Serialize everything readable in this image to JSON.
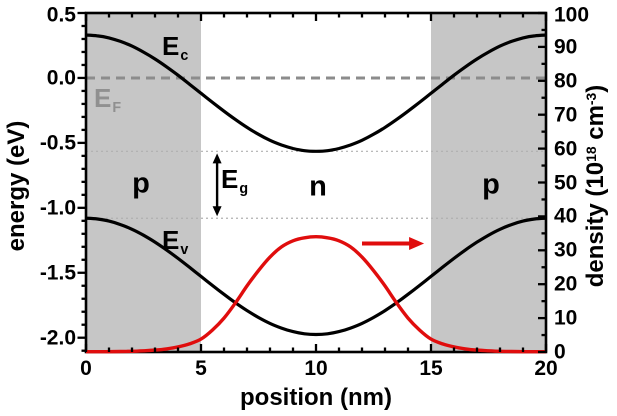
{
  "colors": {
    "background": "#ffffff",
    "band_curve": "#000000",
    "density_curve": "#e00d0d",
    "shaded_region": "#c6c6c6",
    "fermi_line": "#8c8c8c",
    "guide_line": "#b0b0b0",
    "frame": "#000000",
    "ef_label": "#909090"
  },
  "labels": {
    "x_axis": "position (nm)",
    "y_left_axis": "energy (eV)",
    "y_right": {
      "p1": "density (10",
      "sup1": "18",
      "p2": " cm",
      "sup2": "-3",
      "p3": ")"
    },
    "ec": {
      "main": "E",
      "sub": "c"
    },
    "ev": {
      "main": "E",
      "sub": "v"
    },
    "ef": {
      "main": "E",
      "sub": "F"
    },
    "eg": {
      "main": "E",
      "sub": "g"
    },
    "region_p_left": "p",
    "region_n": "n",
    "region_p_right": "p"
  },
  "chart_data": {
    "type": "line",
    "title": "",
    "x": {
      "label": "position (nm)",
      "min": 0,
      "max": 20,
      "major_ticks": [
        0,
        5,
        10,
        15,
        20
      ],
      "major_tick_labels": [
        "0",
        "5",
        "10",
        "15",
        "20"
      ],
      "minor_step": 1
    },
    "y_left": {
      "label": "energy (eV)",
      "min": -2.11,
      "max": 0.5,
      "major_ticks": [
        0.5,
        0.0,
        -0.5,
        -1.0,
        -1.5,
        -2.0
      ],
      "major_tick_labels": [
        "0.5",
        "0.0",
        "-0.5",
        "-1.0",
        "-1.5",
        "-2.0"
      ],
      "minor_step": 0.1
    },
    "y_right": {
      "label": "density (10^18 cm^-3)",
      "min": 0,
      "max": 100,
      "major_ticks": [
        0,
        10,
        20,
        30,
        40,
        50,
        60,
        70,
        80,
        90,
        100
      ],
      "major_tick_labels": [
        "0",
        "10",
        "20",
        "30",
        "40",
        "50",
        "60",
        "70",
        "80",
        "90",
        "100"
      ],
      "minor_step": 5
    },
    "grid": false,
    "legend": "none",
    "series": [
      {
        "id": "conduction_band",
        "name": "E_c",
        "axis": "left",
        "color": "#000000",
        "width": 3.2,
        "x_start": 0,
        "x_step": 0.5,
        "y": [
          0.33,
          0.324,
          0.308,
          0.281,
          0.245,
          0.199,
          0.146,
          0.086,
          0.021,
          -0.048,
          -0.118,
          -0.188,
          -0.256,
          -0.321,
          -0.381,
          -0.434,
          -0.48,
          -0.516,
          -0.543,
          -0.56,
          -0.565,
          -0.56,
          -0.543,
          -0.516,
          -0.48,
          -0.434,
          -0.381,
          -0.321,
          -0.256,
          -0.188,
          -0.118,
          -0.048,
          0.021,
          0.086,
          0.146,
          0.199,
          0.245,
          0.281,
          0.308,
          0.324,
          0.33
        ]
      },
      {
        "id": "valence_band",
        "name": "E_v",
        "axis": "left",
        "color": "#000000",
        "width": 3.2,
        "x_start": 0,
        "x_step": 0.5,
        "y": [
          -1.08,
          -1.086,
          -1.102,
          -1.129,
          -1.165,
          -1.211,
          -1.264,
          -1.324,
          -1.389,
          -1.458,
          -1.528,
          -1.598,
          -1.666,
          -1.731,
          -1.791,
          -1.844,
          -1.89,
          -1.926,
          -1.953,
          -1.97,
          -1.975,
          -1.97,
          -1.953,
          -1.926,
          -1.89,
          -1.844,
          -1.791,
          -1.731,
          -1.666,
          -1.598,
          -1.528,
          -1.458,
          -1.389,
          -1.324,
          -1.264,
          -1.211,
          -1.165,
          -1.129,
          -1.102,
          -1.086,
          -1.08
        ]
      },
      {
        "id": "carrier_density",
        "name": "density",
        "axis": "right",
        "color": "#e00d0d",
        "width": 3.4,
        "x_start": 0,
        "x_step": 0.5,
        "y": [
          0.1,
          0.1,
          0.1,
          0.15,
          0.2,
          0.35,
          0.55,
          0.9,
          1.5,
          2.4,
          3.8,
          6.5,
          10,
          14.5,
          19.5,
          24,
          28,
          31,
          32.8,
          33.7,
          34,
          33.7,
          32.8,
          31,
          28,
          24,
          19.5,
          14.5,
          10,
          6.5,
          3.8,
          2.4,
          1.5,
          0.9,
          0.55,
          0.35,
          0.2,
          0.15,
          0.1,
          0.1,
          0.1
        ]
      }
    ],
    "fermi_level": {
      "energy": 0.0,
      "label": "E_F",
      "style": "dashed",
      "color": "#8c8c8c"
    },
    "band_gap_guides": [
      -0.565,
      -1.08
    ],
    "regions": [
      {
        "label": "p",
        "x0": 0,
        "x1": 5,
        "shaded": true
      },
      {
        "label": "n",
        "x0": 5,
        "x1": 15,
        "shaded": false
      },
      {
        "label": "p",
        "x0": 15,
        "x1": 20,
        "shaded": true
      }
    ],
    "annotations": {
      "eg_arrow": {
        "x": 5.7,
        "from_energy": -0.565,
        "to_energy": -1.08,
        "label": "E_g",
        "color": "#000000"
      },
      "direction_arrow": {
        "x0": 12.0,
        "x1": 14.7,
        "density": 32,
        "color": "#e00d0d"
      }
    }
  }
}
